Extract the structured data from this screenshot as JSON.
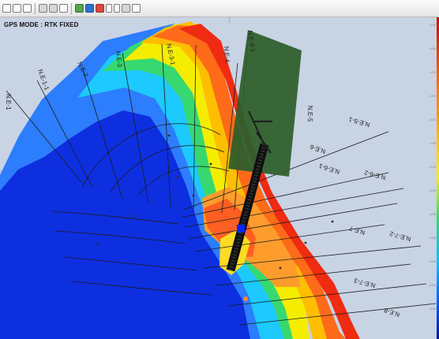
{
  "toolbar": {
    "icons": [
      "zoom-in-icon",
      "zoom-out-icon",
      "pan-icon",
      "fit-icon",
      "layers-icon",
      "measure-icon",
      "line-icon",
      "point-icon",
      "select-icon",
      "undo-icon",
      "redo-icon",
      "refresh-icon",
      "print-icon"
    ]
  },
  "map": {
    "status": "GPS MODE : RTK FIXED",
    "line_labels": [
      "N.E-1",
      "N.E-1-1",
      "N.E-2",
      "N.E-3",
      "N.E-3-1",
      "N.E-4",
      "N.E-4-1",
      "N.E-5",
      "N.E-5-1",
      "N.E-6",
      "N.E-6-1",
      "N.E-6-2",
      "N.E-7",
      "N.E-7-2",
      "N.E-7-3",
      "N.E-8"
    ],
    "colors": {
      "land": "#c7d4e8",
      "deep": "#0a33d8",
      "shallow": "#ff5a1f",
      "structure": "#2f5f2c",
      "highlight": "#0027ff"
    }
  }
}
